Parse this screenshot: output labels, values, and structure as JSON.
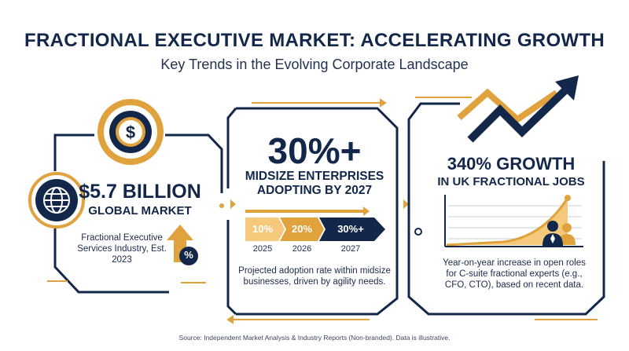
{
  "header": {
    "title": "FRACTIONAL EXECUTIVE MARKET: ACCELERATING GROWTH",
    "subtitle": "Key Trends in the Evolving Corporate Landscape"
  },
  "panels": {
    "market": {
      "value": "$5.7 BILLION",
      "label": "GLOBAL MARKET",
      "description": "Fractional Executive Services Industry, Est. 2023",
      "icons": [
        "dollar-coin-icon",
        "globe-icon",
        "up-arrow-icon",
        "percent-icon"
      ],
      "percent_symbol": "%"
    },
    "adoption": {
      "value": "30%+",
      "label": "MIDSIZE ENTERPRISES ADOPTING BY 2027",
      "steps": [
        {
          "value": "10%",
          "year": "2025",
          "fill_fraction": 0.1
        },
        {
          "value": "20%",
          "year": "2026",
          "fill_fraction": 0.2
        },
        {
          "value": "30%+",
          "year": "2027",
          "fill_fraction": 0.3
        }
      ],
      "description": "Projected adoption rate within midsize businesses, driven by agility needs."
    },
    "uk_jobs": {
      "value": "340% GROWTH",
      "label": "IN UK FRACTIONAL JOBS",
      "description": "Year-on-year increase in open roles for C-suite fractional experts (e.g., CFO, CTO), based on recent data.",
      "growth_percent": 340,
      "icons": [
        "trend-arrow-icon",
        "people-icon"
      ]
    }
  },
  "colors": {
    "navy": "#13274a",
    "gold": "#e0a23c",
    "gold_light": "#f4c97c"
  },
  "footer": {
    "source": "Source: Independent Market Analysis & Industry Reports (Non-branded). Data is illustrative."
  }
}
